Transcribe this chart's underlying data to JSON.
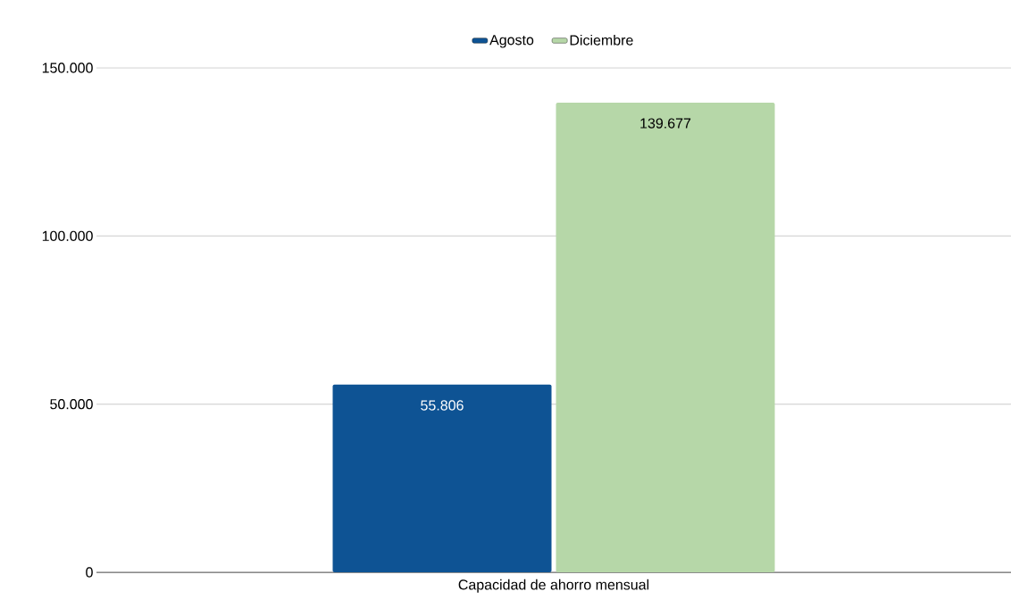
{
  "chart_data": {
    "type": "bar",
    "categories": [
      "Capacidad de ahorro mensual"
    ],
    "series": [
      {
        "name": "Agosto",
        "color": "#0e5394",
        "values": [
          55806
        ],
        "value_labels": [
          "55.806"
        ]
      },
      {
        "name": "Diciembre",
        "color": "#b6d7a8",
        "values": [
          139677
        ],
        "value_labels": [
          "139.677"
        ]
      }
    ],
    "ylim": [
      0,
      150000
    ],
    "yticks": [
      {
        "value": 0,
        "label": "0"
      },
      {
        "value": 50000,
        "label": "50.000"
      },
      {
        "value": 100000,
        "label": "100.000"
      },
      {
        "value": 150000,
        "label": "150.000"
      }
    ],
    "grid": "y",
    "legend": "top"
  }
}
